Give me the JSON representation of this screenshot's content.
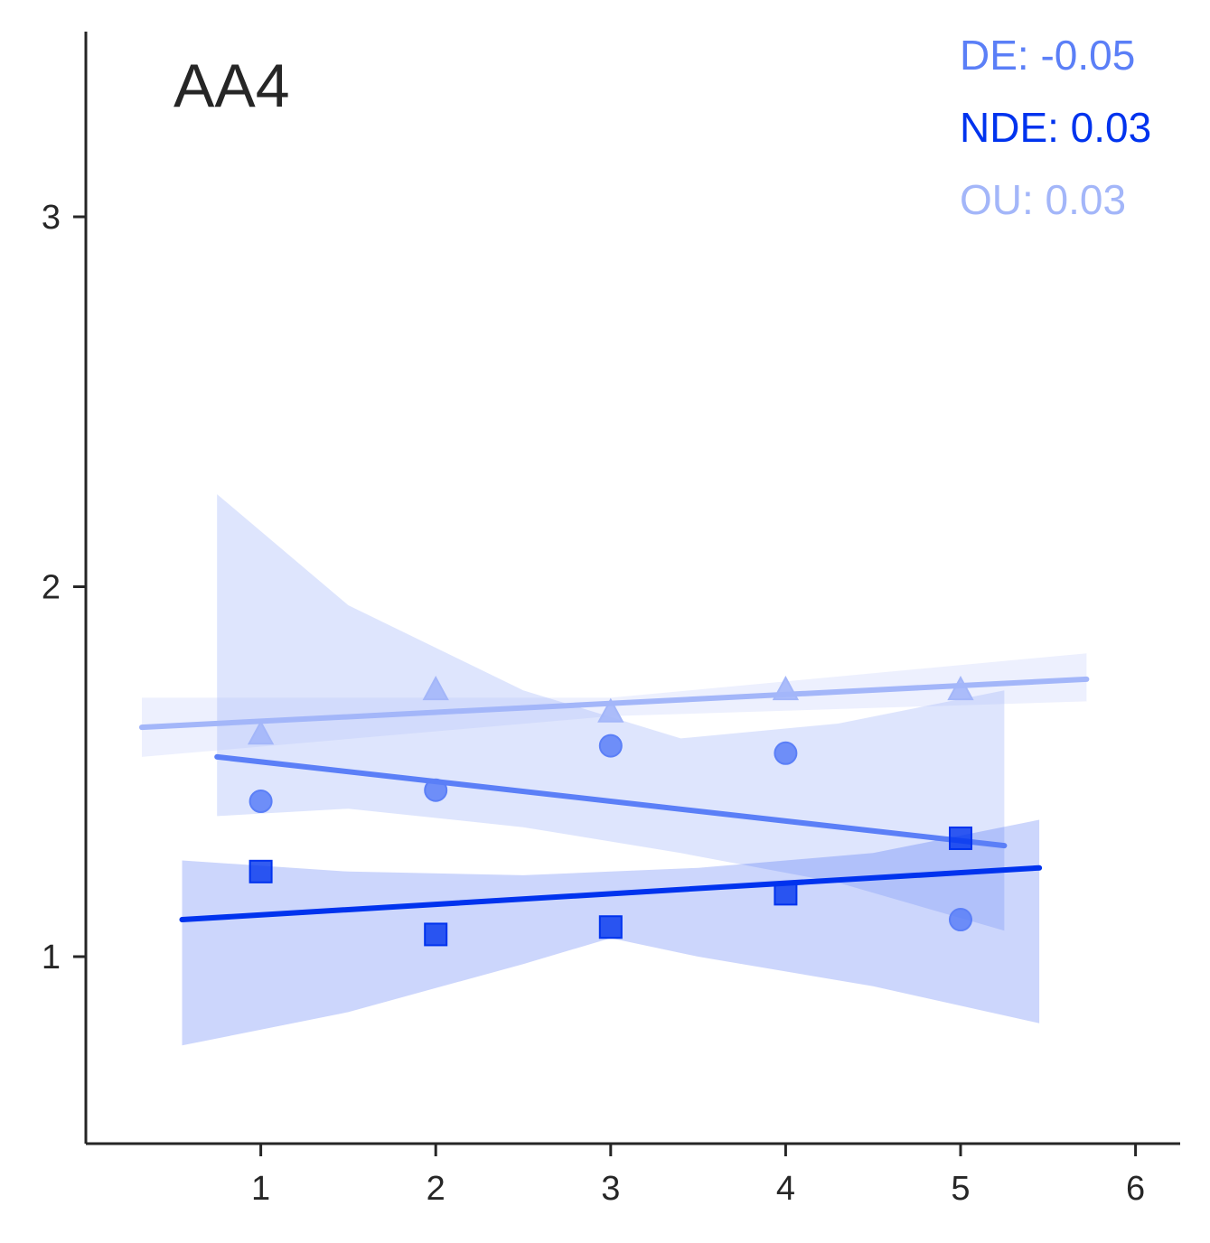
{
  "chart_data": {
    "type": "scatter",
    "title": "AA4",
    "xlabel": "",
    "ylabel": "",
    "xlim": [
      0.0,
      6.25
    ],
    "ylim": [
      0.5,
      3.5
    ],
    "xticks": [
      1,
      2,
      3,
      4,
      5,
      6
    ],
    "yticks": [
      1,
      2,
      3
    ],
    "grid": false,
    "series": [
      {
        "name": "DE",
        "marker": "circle",
        "color": "#5b7ff7",
        "x": [
          1,
          2,
          3,
          4,
          5
        ],
        "y": [
          1.42,
          1.45,
          1.57,
          1.55,
          1.1
        ],
        "fit": {
          "x": [
            0.75,
            5.25
          ],
          "y": [
            1.54,
            1.3
          ]
        },
        "band": {
          "x": [
            0.75,
            1.5,
            2.5,
            3.4,
            4.3,
            5.25
          ],
          "lower": [
            1.38,
            1.4,
            1.35,
            1.28,
            1.2,
            1.07
          ],
          "upper": [
            2.25,
            1.95,
            1.72,
            1.59,
            1.63,
            1.72
          ]
        }
      },
      {
        "name": "NDE",
        "marker": "square",
        "color": "#0033ee",
        "x": [
          1,
          2,
          3,
          4,
          5
        ],
        "y": [
          1.23,
          1.06,
          1.08,
          1.17,
          1.32
        ],
        "fit": {
          "x": [
            0.55,
            5.45
          ],
          "y": [
            1.1,
            1.24
          ]
        },
        "band": {
          "x": [
            0.55,
            1.5,
            2.5,
            3.0,
            3.5,
            4.5,
            5.45
          ],
          "lower": [
            0.76,
            0.85,
            0.98,
            1.05,
            1.0,
            0.92,
            0.82
          ],
          "upper": [
            1.26,
            1.23,
            1.22,
            1.23,
            1.24,
            1.28,
            1.37
          ]
        }
      },
      {
        "name": "OU",
        "marker": "triangle",
        "color": "#a3b6f9",
        "x": [
          1,
          2,
          3,
          4,
          5
        ],
        "y": [
          1.6,
          1.72,
          1.66,
          1.72,
          1.72
        ],
        "fit": {
          "x": [
            0.32,
            5.72
          ],
          "y": [
            1.62,
            1.75
          ]
        },
        "band": {
          "x": [
            0.32,
            3.0,
            5.72
          ],
          "lower": [
            1.54,
            1.65,
            1.69
          ],
          "upper": [
            1.7,
            1.7,
            1.82
          ]
        }
      }
    ],
    "annotations": [
      {
        "text": "DE: -0.05",
        "color": "#5b7ff7"
      },
      {
        "text": "NDE: 0.03",
        "color": "#0033ee"
      },
      {
        "text": "OU: 0.03",
        "color": "#a3b6f9"
      }
    ]
  }
}
